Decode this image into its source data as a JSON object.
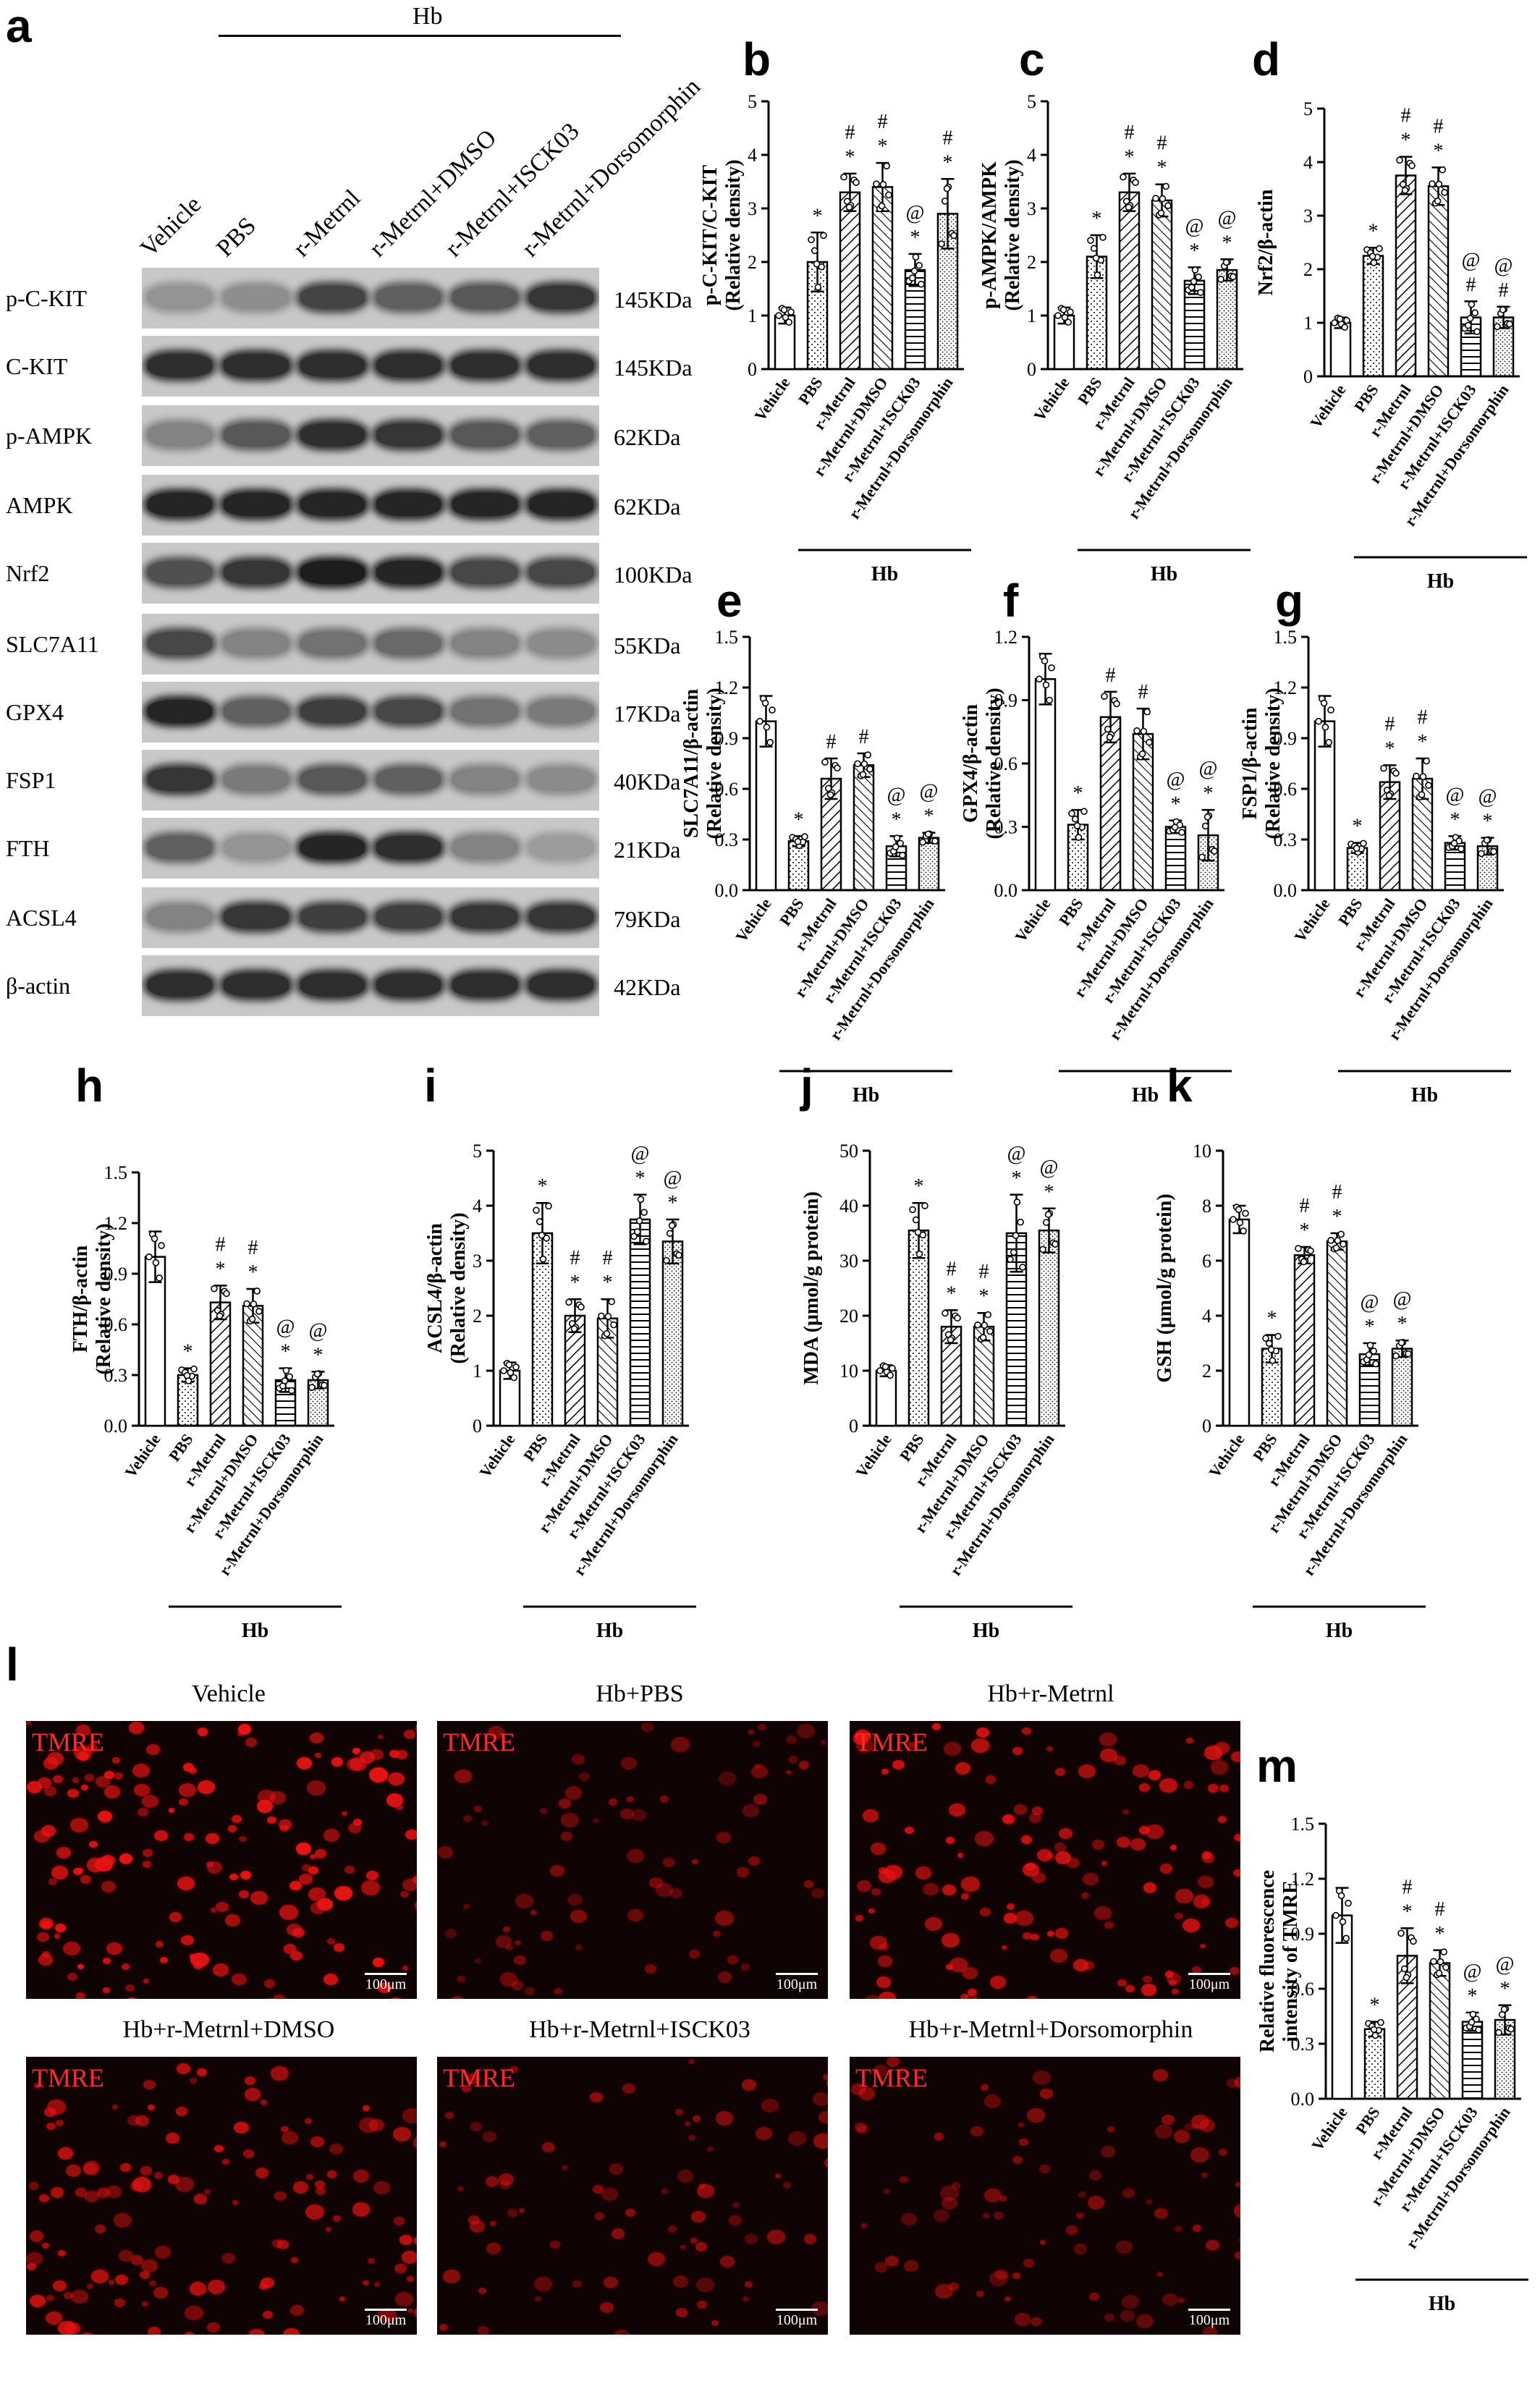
{
  "panel_letters": {
    "a": "a",
    "b": "b",
    "c": "c",
    "d": "d",
    "e": "e",
    "f": "f",
    "g": "g",
    "h": "h",
    "i": "i",
    "j": "j",
    "k": "k",
    "l": "l",
    "m": "m"
  },
  "blot": {
    "group_label": "Hb",
    "lanes": [
      "Vehicle",
      "PBS",
      "r-Metrnl",
      "r-Metrnl+DMSO",
      "r-Metrnl+ISCK03",
      "r-Metrnl+Dorsomorphin"
    ],
    "rows": [
      {
        "protein": "p-C-KIT",
        "size": "145KDa",
        "intensity": [
          0.25,
          0.28,
          0.72,
          0.55,
          0.6,
          0.8
        ]
      },
      {
        "protein": "C-KIT",
        "size": "145KDa",
        "intensity": [
          0.85,
          0.85,
          0.85,
          0.85,
          0.85,
          0.85
        ]
      },
      {
        "protein": "p-AMPK",
        "size": "62KDa",
        "intensity": [
          0.35,
          0.6,
          0.85,
          0.8,
          0.6,
          0.55
        ]
      },
      {
        "protein": "AMPK",
        "size": "62KDa",
        "intensity": [
          0.9,
          0.9,
          0.9,
          0.9,
          0.9,
          0.9
        ]
      },
      {
        "protein": "Nrf2",
        "size": "100KDa",
        "intensity": [
          0.65,
          0.8,
          0.95,
          0.9,
          0.7,
          0.7
        ]
      },
      {
        "protein": "SLC7A11",
        "size": "55KDa",
        "intensity": [
          0.7,
          0.35,
          0.45,
          0.5,
          0.35,
          0.3
        ]
      },
      {
        "protein": "GPX4",
        "size": "17KDa",
        "intensity": [
          0.9,
          0.55,
          0.75,
          0.7,
          0.45,
          0.4
        ]
      },
      {
        "protein": "FSP1",
        "size": "40KDa",
        "intensity": [
          0.8,
          0.4,
          0.6,
          0.55,
          0.35,
          0.3
        ]
      },
      {
        "protein": "FTH",
        "size": "21KDa",
        "intensity": [
          0.55,
          0.25,
          0.9,
          0.85,
          0.35,
          0.2
        ]
      },
      {
        "protein": "ACSL4",
        "size": "79KDa",
        "intensity": [
          0.35,
          0.8,
          0.75,
          0.75,
          0.8,
          0.8
        ]
      },
      {
        "protein": "β-actin",
        "size": "42KDa",
        "intensity": [
          0.85,
          0.85,
          0.85,
          0.85,
          0.85,
          0.85
        ]
      }
    ]
  },
  "microscopy": {
    "stain_label": "TMRE",
    "scale_label": "100μm",
    "panels": [
      {
        "title": "Vehicle",
        "density": 1.0
      },
      {
        "title": "Hb+PBS",
        "density": 0.35
      },
      {
        "title": "Hb+r-Metrnl",
        "density": 0.8
      },
      {
        "title": "Hb+r-Metrnl+DMSO",
        "density": 0.75
      },
      {
        "title": "Hb+r-Metrnl+ISCK03",
        "density": 0.4
      },
      {
        "title": "Hb+r-Metrnl+Dorsomorphin",
        "density": 0.42
      }
    ]
  },
  "chart_data": [
    {
      "panel": "b",
      "type": "bar",
      "categories": [
        "Vehicle",
        "PBS",
        "r-Metrnl",
        "r-Metrnl+DMSO",
        "r-Metrnl+ISCK03",
        "r-Metrnl+Dorsomorphin"
      ],
      "values": [
        1.0,
        2.0,
        3.3,
        3.4,
        1.85,
        2.9
      ],
      "errors": [
        0.15,
        0.55,
        0.35,
        0.45,
        0.3,
        0.65
      ],
      "ylabel": "p-C-KIT/C-KIT",
      "ylabel2": "(Relative density)",
      "ylim": [
        0,
        5
      ],
      "yticks": [
        "0",
        "1",
        "2",
        "3",
        "4",
        "5"
      ],
      "marks": [
        "",
        "*",
        "*\n#",
        "*\n#",
        "*\n@",
        "*\n#"
      ],
      "group": "Hb"
    },
    {
      "panel": "c",
      "type": "bar",
      "categories": [
        "Vehicle",
        "PBS",
        "r-Metrnl",
        "r-Metrnl+DMSO",
        "r-Metrnl+ISCK03",
        "r-Metrnl+Dorsomorphin"
      ],
      "values": [
        1.0,
        2.1,
        3.3,
        3.15,
        1.65,
        1.85
      ],
      "errors": [
        0.15,
        0.4,
        0.35,
        0.3,
        0.25,
        0.2
      ],
      "ylabel": "p-AMPK/AMPK",
      "ylabel2": "(Relative density)",
      "ylim": [
        0,
        5
      ],
      "yticks": [
        "0",
        "1",
        "2",
        "3",
        "4",
        "5"
      ],
      "marks": [
        "",
        "*",
        "*\n#",
        "*\n#",
        "*\n@",
        "*\n@"
      ],
      "group": "Hb"
    },
    {
      "panel": "d",
      "type": "bar",
      "categories": [
        "Vehicle",
        "PBS",
        "r-Metrnl",
        "r-Metrnl+DMSO",
        "r-Metrnl+ISCK03",
        "r-Metrnl+Dorsomorphin"
      ],
      "values": [
        1.0,
        2.25,
        3.75,
        3.55,
        1.1,
        1.1
      ],
      "errors": [
        0.1,
        0.15,
        0.35,
        0.35,
        0.3,
        0.2
      ],
      "ylabel": "Nrf2/β-actin",
      "ylabel2": "",
      "ylim": [
        0,
        5
      ],
      "yticks": [
        "0",
        "1",
        "2",
        "3",
        "4",
        "5"
      ],
      "marks": [
        "",
        "*",
        "*\n#",
        "*\n#",
        "#\n@",
        "#\n@"
      ],
      "group": "Hb"
    },
    {
      "panel": "e",
      "type": "bar",
      "categories": [
        "Vehicle",
        "PBS",
        "r-Metrnl",
        "r-Metrnl+DMSO",
        "r-Metrnl+ISCK03",
        "r-Metrnl+Dorsomorphin"
      ],
      "values": [
        1.0,
        0.29,
        0.66,
        0.74,
        0.26,
        0.31
      ],
      "errors": [
        0.15,
        0.03,
        0.12,
        0.07,
        0.06,
        0.03
      ],
      "ylabel": "SLC7A11/β-actin",
      "ylabel2": "(Relative density)",
      "ylim": [
        0,
        1.5
      ],
      "yticks": [
        "0.0",
        "0.3",
        "0.6",
        "0.9",
        "1.2",
        "1.5"
      ],
      "marks": [
        "",
        "*",
        "#",
        "#",
        "*\n@",
        "*\n@"
      ],
      "group": "Hb"
    },
    {
      "panel": "f",
      "type": "bar",
      "categories": [
        "Vehicle",
        "PBS",
        "r-Metrnl",
        "r-Metrnl+DMSO",
        "r-Metrnl+ISCK03",
        "r-Metrnl+Dorsomorphin"
      ],
      "values": [
        1.0,
        0.31,
        0.82,
        0.74,
        0.3,
        0.26
      ],
      "errors": [
        0.12,
        0.07,
        0.12,
        0.12,
        0.03,
        0.12
      ],
      "ylabel": "GPX4/β-actin",
      "ylabel2": "(Relative density)",
      "ylim": [
        0,
        1.2
      ],
      "yticks": [
        "0.0",
        "0.3",
        "0.6",
        "0.9",
        "1.2"
      ],
      "marks": [
        "",
        "*",
        "#",
        "#",
        "*\n@",
        "*\n@"
      ],
      "group": "Hb"
    },
    {
      "panel": "g",
      "type": "bar",
      "categories": [
        "Vehicle",
        "PBS",
        "r-Metrnl",
        "r-Metrnl+DMSO",
        "r-Metrnl+ISCK03",
        "r-Metrnl+Dorsomorphin"
      ],
      "values": [
        1.0,
        0.25,
        0.64,
        0.66,
        0.28,
        0.26
      ],
      "errors": [
        0.15,
        0.03,
        0.1,
        0.12,
        0.04,
        0.05
      ],
      "ylabel": "FSP1/β-actin",
      "ylabel2": "(Relative density)",
      "ylim": [
        0,
        1.5
      ],
      "yticks": [
        "0.0",
        "0.3",
        "0.6",
        "0.9",
        "1.2",
        "1.5"
      ],
      "marks": [
        "",
        "*",
        "*\n#",
        "*\n#",
        "*\n@",
        "*\n@"
      ],
      "group": "Hb"
    },
    {
      "panel": "h",
      "type": "bar",
      "categories": [
        "Vehicle",
        "PBS",
        "r-Metrnl",
        "r-Metrnl+DMSO",
        "r-Metrnl+ISCK03",
        "r-Metrnl+Dorsomorphin"
      ],
      "values": [
        1.0,
        0.3,
        0.73,
        0.71,
        0.27,
        0.27
      ],
      "errors": [
        0.15,
        0.04,
        0.1,
        0.1,
        0.07,
        0.05
      ],
      "ylabel": "FTH/β-actin",
      "ylabel2": "(Relative density)",
      "ylim": [
        0,
        1.5
      ],
      "yticks": [
        "0.0",
        "0.3",
        "0.6",
        "0.9",
        "1.2",
        "1.5"
      ],
      "marks": [
        "",
        "*",
        "*\n#",
        "*\n#",
        "*\n@",
        "*\n@"
      ],
      "group": "Hb"
    },
    {
      "panel": "i",
      "type": "bar",
      "categories": [
        "Vehicle",
        "PBS",
        "r-Metrnl",
        "r-Metrnl+DMSO",
        "r-Metrnl+ISCK03",
        "r-Metrnl+Dorsomorphin"
      ],
      "values": [
        1.0,
        3.5,
        2.0,
        1.95,
        3.75,
        3.35
      ],
      "errors": [
        0.15,
        0.55,
        0.3,
        0.35,
        0.45,
        0.4
      ],
      "ylabel": "ACSL4/β-actin",
      "ylabel2": "(Relative density)",
      "ylim": [
        0,
        5
      ],
      "yticks": [
        "0",
        "1",
        "2",
        "3",
        "4",
        "5"
      ],
      "marks": [
        "",
        "*",
        "*\n#",
        "*\n#",
        "*\n@",
        "*\n@"
      ],
      "group": "Hb"
    },
    {
      "panel": "j",
      "type": "bar",
      "categories": [
        "Vehicle",
        "PBS",
        "r-Metrnl",
        "r-Metrnl+DMSO",
        "r-Metrnl+ISCK03",
        "r-Metrnl+Dorsomorphin"
      ],
      "values": [
        10,
        35.5,
        18,
        18,
        35,
        35.5
      ],
      "errors": [
        1,
        5,
        3,
        2.5,
        7,
        4
      ],
      "ylabel": "MDA (μmol/g protein)",
      "ylabel2": "",
      "ylim": [
        0,
        50
      ],
      "yticks": [
        "0",
        "10",
        "20",
        "30",
        "40",
        "50"
      ],
      "marks": [
        "",
        "*",
        "*\n#",
        "*\n#",
        "*\n@",
        "*\n@"
      ],
      "group": "Hb"
    },
    {
      "panel": "k",
      "type": "bar",
      "categories": [
        "Vehicle",
        "PBS",
        "r-Metrnl",
        "r-Metrnl+DMSO",
        "r-Metrnl+ISCK03",
        "r-Metrnl+Dorsomorphin"
      ],
      "values": [
        7.5,
        2.8,
        6.2,
        6.7,
        2.6,
        2.8
      ],
      "errors": [
        0.5,
        0.5,
        0.3,
        0.3,
        0.4,
        0.3
      ],
      "ylabel": "GSH (μmol/g protein)",
      "ylabel2": "",
      "ylim": [
        0,
        10
      ],
      "yticks": [
        "0",
        "2",
        "4",
        "6",
        "8",
        "10"
      ],
      "marks": [
        "",
        "*",
        "*\n#",
        "*\n#",
        "*\n@",
        "*\n@"
      ],
      "group": "Hb"
    },
    {
      "panel": "m",
      "type": "bar",
      "categories": [
        "Vehicle",
        "PBS",
        "r-Metrnl",
        "r-Metrnl+DMSO",
        "r-Metrnl+ISCK03",
        "r-Metrnl+Dorsomorphin"
      ],
      "values": [
        1.0,
        0.38,
        0.78,
        0.74,
        0.42,
        0.43
      ],
      "errors": [
        0.15,
        0.04,
        0.15,
        0.07,
        0.05,
        0.08
      ],
      "ylabel": "Relative fluorescence",
      "ylabel2": "intensity of TMRE",
      "ylim": [
        0,
        1.5
      ],
      "yticks": [
        "0.0",
        "0.3",
        "0.6",
        "0.9",
        "1.2",
        "1.5"
      ],
      "marks": [
        "",
        "*",
        "*\n#",
        "*\n#",
        "*\n@",
        "*\n@"
      ],
      "group": "Hb"
    }
  ]
}
